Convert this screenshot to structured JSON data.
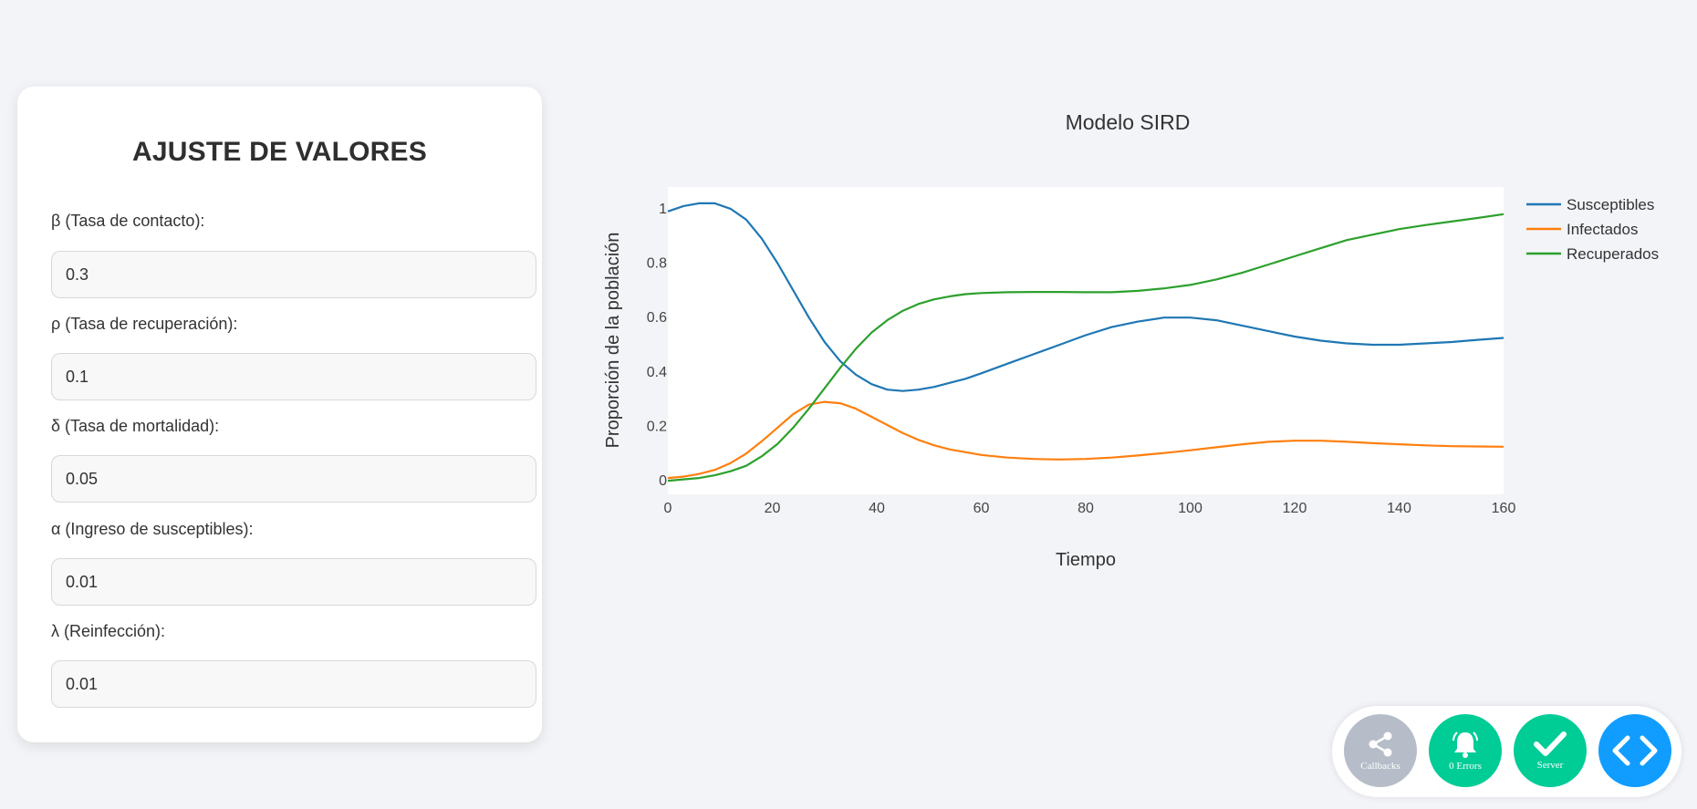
{
  "panel": {
    "title": "AJUSTE DE VALORES",
    "fields": [
      {
        "label": "β (Tasa de contacto):",
        "value": "0.3"
      },
      {
        "label": "ρ (Tasa de recuperación):",
        "value": "0.1"
      },
      {
        "label": "δ (Tasa de mortalidad):",
        "value": "0.05"
      },
      {
        "label": "α (Ingreso de susceptibles):",
        "value": "0.01"
      },
      {
        "label": "λ (Reinfección):",
        "value": "0.01"
      }
    ]
  },
  "chart_data": {
    "type": "line",
    "title": "Modelo SIRD",
    "xlabel": "Tiempo",
    "ylabel": "Proporción de la población",
    "xlim": [
      0,
      160
    ],
    "ylim": [
      -0.05,
      1.08
    ],
    "xticks": [
      0,
      20,
      40,
      60,
      80,
      100,
      120,
      140,
      160
    ],
    "yticks": [
      0,
      0.2,
      0.4,
      0.6,
      0.8,
      1
    ],
    "ytick_labels": [
      "0",
      "0.2",
      "0.4",
      "0.6",
      "0.8",
      "1"
    ],
    "grid": false,
    "legend_position": "top-right outside",
    "x": [
      0,
      3,
      6,
      9,
      12,
      15,
      18,
      21,
      24,
      27,
      30,
      33,
      36,
      39,
      42,
      45,
      48,
      51,
      54,
      57,
      60,
      65,
      70,
      75,
      80,
      85,
      90,
      95,
      100,
      105,
      110,
      115,
      120,
      125,
      130,
      135,
      140,
      145,
      150,
      155,
      160
    ],
    "series": [
      {
        "name": "Susceptibles",
        "color": "#1f77b4",
        "values": [
          0.99,
          1.01,
          1.02,
          1.02,
          1.0,
          0.96,
          0.89,
          0.8,
          0.7,
          0.6,
          0.51,
          0.44,
          0.39,
          0.355,
          0.335,
          0.33,
          0.335,
          0.345,
          0.36,
          0.375,
          0.395,
          0.43,
          0.465,
          0.5,
          0.535,
          0.565,
          0.585,
          0.6,
          0.6,
          0.59,
          0.57,
          0.55,
          0.53,
          0.515,
          0.505,
          0.5,
          0.5,
          0.505,
          0.51,
          0.518,
          0.525
        ]
      },
      {
        "name": "Infectados",
        "color": "#ff7f0e",
        "values": [
          0.01,
          0.015,
          0.025,
          0.04,
          0.065,
          0.1,
          0.145,
          0.195,
          0.245,
          0.28,
          0.29,
          0.285,
          0.265,
          0.235,
          0.205,
          0.175,
          0.15,
          0.13,
          0.115,
          0.105,
          0.095,
          0.085,
          0.08,
          0.078,
          0.08,
          0.085,
          0.093,
          0.102,
          0.112,
          0.123,
          0.134,
          0.143,
          0.147,
          0.147,
          0.143,
          0.138,
          0.134,
          0.13,
          0.127,
          0.126,
          0.125
        ]
      },
      {
        "name": "Recuperados",
        "color": "#2ca02c",
        "values": [
          0.0,
          0.005,
          0.01,
          0.02,
          0.035,
          0.055,
          0.09,
          0.135,
          0.195,
          0.265,
          0.34,
          0.415,
          0.485,
          0.545,
          0.59,
          0.625,
          0.65,
          0.667,
          0.678,
          0.686,
          0.69,
          0.693,
          0.694,
          0.694,
          0.693,
          0.693,
          0.698,
          0.707,
          0.72,
          0.74,
          0.765,
          0.795,
          0.825,
          0.855,
          0.885,
          0.905,
          0.925,
          0.94,
          0.953,
          0.966,
          0.98
        ]
      }
    ]
  },
  "devtools": {
    "callbacks_label": "Callbacks",
    "errors_label": "0 Errors",
    "server_label": "Server",
    "colors": {
      "callbacks": "#b6bdc8",
      "errors": "#00cc96",
      "server": "#00cc96",
      "toggle": "#119dff"
    }
  }
}
